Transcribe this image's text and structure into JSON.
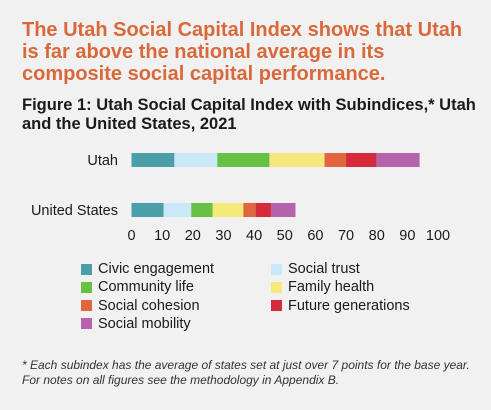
{
  "headline": "The Utah Social Capital Index shows that Utah is far above the national average in its composite social capital performance.",
  "figure_title": "Figure 1: Utah Social Capital Index with Subindices,* Utah and the United States, 2021",
  "footnote": "* Each subindex has the average of states set at just over 7 points for the base year. For notes on all figures see the methodology in Appendix B.",
  "chart_data": {
    "type": "bar",
    "orientation": "horizontal",
    "stacked": true,
    "categories": [
      "Utah",
      "United States"
    ],
    "series": [
      {
        "name": "Civic engagement",
        "color": "#4a9fa8",
        "values": [
          14,
          10.5
        ]
      },
      {
        "name": "Social trust",
        "color": "#c9e9f8",
        "values": [
          14,
          9
        ]
      },
      {
        "name": "Community life",
        "color": "#67c144",
        "values": [
          17,
          7
        ]
      },
      {
        "name": "Family health",
        "color": "#f5e97a",
        "values": [
          18,
          10
        ]
      },
      {
        "name": "Social cohesion",
        "color": "#e0663f",
        "values": [
          7,
          4
        ]
      },
      {
        "name": "Future generations",
        "color": "#d42c3a",
        "values": [
          10,
          5
        ]
      },
      {
        "name": "Social mobility",
        "color": "#b563ad",
        "values": [
          14,
          8
        ]
      }
    ],
    "xlim": [
      0,
      100
    ],
    "xticks": [
      0,
      10,
      20,
      30,
      40,
      50,
      60,
      70,
      80,
      90,
      100
    ],
    "xlabel": "",
    "ylabel": "",
    "grid": false,
    "legend_position": "bottom"
  }
}
